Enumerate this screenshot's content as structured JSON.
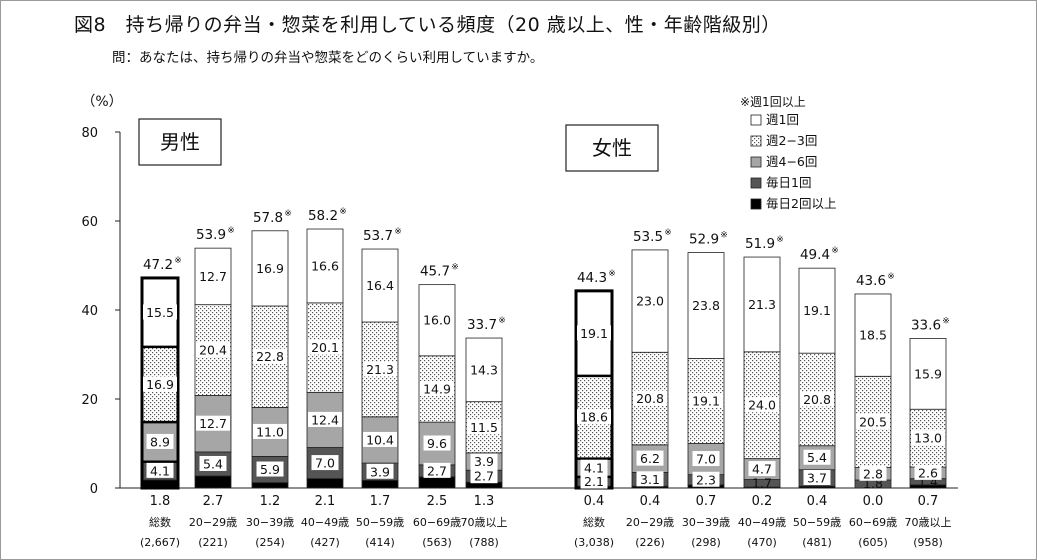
{
  "title": "図8　持ち帰りの弁当・惣菜を利用している頻度（20 歳以上、性・年齢階級別）",
  "question": "問：あなたは、持ち帰りの弁当や惣菜をどのくらい利用していますか。",
  "chart_data": {
    "type": "bar",
    "stacked": true,
    "unit": "（%）",
    "note": "※週1回以上",
    "ylim": [
      0,
      80
    ],
    "yticks": [
      "0",
      "20",
      "40",
      "60",
      "80"
    ],
    "grid": false,
    "legend_position": "top-right",
    "series": [
      {
        "name": "毎日2回以上",
        "key": "daily2",
        "color": "#000000",
        "pattern": "solid-black"
      },
      {
        "name": "毎日1回",
        "key": "daily1",
        "color": "#555555",
        "pattern": "solid-dark-gray"
      },
      {
        "name": "週4−6回",
        "key": "w46",
        "color": "#a6a6a6",
        "pattern": "solid-gray"
      },
      {
        "name": "週2−3回",
        "key": "w23",
        "color": "#ffffff",
        "pattern": "dots"
      },
      {
        "name": "週1回",
        "key": "w1",
        "color": "#ffffff",
        "pattern": "white"
      }
    ],
    "star": "※",
    "panels": [
      {
        "label": "男性",
        "groups": [
          {
            "category": "総数",
            "n": "(2,667)",
            "bottom": "1.8",
            "daily1": "4.1",
            "w46": "8.9",
            "w23": "16.9",
            "w1": "15.5",
            "total": "47.2",
            "values": [
              1.8,
              4.1,
              8.9,
              16.9,
              15.5
            ],
            "highlight": true
          },
          {
            "category": "20−29歳",
            "n": "(221)",
            "bottom": "2.7",
            "daily1": "5.4",
            "w46": "12.7",
            "w23": "20.4",
            "w1": "12.7",
            "total": "53.9",
            "values": [
              2.7,
              5.4,
              12.7,
              20.4,
              12.7
            ]
          },
          {
            "category": "30−39歳",
            "n": "(254)",
            "bottom": "1.2",
            "daily1": "5.9",
            "w46": "11.0",
            "w23": "22.8",
            "w1": "16.9",
            "total": "57.8",
            "values": [
              1.2,
              5.9,
              11.0,
              22.8,
              16.9
            ]
          },
          {
            "category": "40−49歳",
            "n": "(427)",
            "bottom": "2.1",
            "daily1": "7.0",
            "w46": "12.4",
            "w23": "20.1",
            "w1": "16.6",
            "total": "58.2",
            "values": [
              2.1,
              7.0,
              12.4,
              20.1,
              16.6
            ]
          },
          {
            "category": "50−59歳",
            "n": "(414)",
            "bottom": "1.7",
            "daily1": "3.9",
            "w46": "10.4",
            "w23": "21.3",
            "w1": "16.4",
            "total": "53.7",
            "values": [
              1.7,
              3.9,
              10.4,
              21.3,
              16.4
            ]
          },
          {
            "category": "60−69歳",
            "n": "(563)",
            "bottom": "2.5",
            "daily1": "2.7",
            "w46": "9.6",
            "w23": "14.9",
            "w1": "16.0",
            "total": "45.7",
            "values": [
              2.5,
              2.7,
              9.6,
              14.9,
              16.0
            ]
          },
          {
            "category": "70歳以上",
            "n": "(788)",
            "bottom": "1.3",
            "daily1": "2.7",
            "w46": "3.9",
            "w23": "11.5",
            "w1": "14.3",
            "total": "33.7",
            "values": [
              1.3,
              2.7,
              3.9,
              11.5,
              14.3
            ]
          }
        ]
      },
      {
        "label": "女性",
        "groups": [
          {
            "category": "総数",
            "n": "(3,038)",
            "bottom": "0.4",
            "daily1": "2.1",
            "w46": "4.1",
            "w23": "18.6",
            "w1": "19.1",
            "total": "44.3",
            "values": [
              0.4,
              2.1,
              4.1,
              18.6,
              19.1
            ],
            "highlight": true
          },
          {
            "category": "20−29歳",
            "n": "(226)",
            "bottom": "0.4",
            "daily1": "3.1",
            "w46": "6.2",
            "w23": "20.8",
            "w1": "23.0",
            "total": "53.5",
            "values": [
              0.4,
              3.1,
              6.2,
              20.8,
              23.0
            ]
          },
          {
            "category": "30−39歳",
            "n": "(298)",
            "bottom": "0.7",
            "daily1": "2.3",
            "w46": "7.0",
            "w23": "19.1",
            "w1": "23.8",
            "total": "52.9",
            "values": [
              0.7,
              2.3,
              7.0,
              19.1,
              23.8
            ]
          },
          {
            "category": "40−49歳",
            "n": "(470)",
            "bottom": "0.2",
            "daily1": "1.7",
            "w46": "4.7",
            "w23": "24.0",
            "w1": "21.3",
            "total": "51.9",
            "values": [
              0.2,
              1.7,
              4.7,
              24.0,
              21.3
            ]
          },
          {
            "category": "50−59歳",
            "n": "(481)",
            "bottom": "0.4",
            "daily1": "3.7",
            "w46": "5.4",
            "w23": "20.8",
            "w1": "19.1",
            "total": "49.4",
            "values": [
              0.4,
              3.7,
              5.4,
              20.8,
              19.1
            ]
          },
          {
            "category": "60−69歳",
            "n": "(605)",
            "bottom": "0.0",
            "daily1": "1.8",
            "w46": "2.8",
            "w23": "20.5",
            "w1": "18.5",
            "total": "43.6",
            "values": [
              0.0,
              1.8,
              2.8,
              20.5,
              18.5
            ]
          },
          {
            "category": "70歳以上",
            "n": "(958)",
            "bottom": "0.7",
            "daily1": "1.4",
            "w46": "2.6",
            "w23": "13.0",
            "w1": "15.9",
            "total": "33.6",
            "values": [
              0.7,
              1.4,
              2.6,
              13.0,
              15.9
            ]
          }
        ]
      }
    ]
  }
}
